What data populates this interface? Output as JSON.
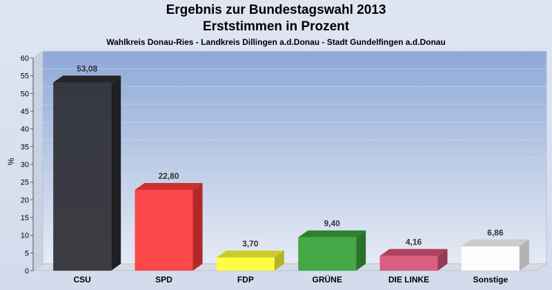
{
  "chart_data": {
    "type": "bar",
    "title": "Ergebnis zur Bundestagswahl 2013",
    "subtitle_line": "Erststimmen in Prozent",
    "subtitle": "Wahlkreis Donau-Ries - Landkreis Dillingen a.d.Donau - Stadt Gundelfingen a.d.Donau",
    "ylabel": "%",
    "xlabel": "",
    "ylim": [
      0,
      60
    ],
    "yticks": [
      "0",
      "5",
      "10",
      "15",
      "20",
      "25",
      "30",
      "35",
      "40",
      "45",
      "50",
      "55",
      "60"
    ],
    "categories": [
      "CSU",
      "SPD",
      "FDP",
      "GRÜNE",
      "DIE LINKE",
      "Sonstige"
    ],
    "values": [
      53.08,
      22.8,
      3.7,
      9.4,
      4.16,
      6.86
    ],
    "value_labels": [
      "53,08",
      "22,80",
      "3,70",
      "9,40",
      "4,16",
      "6,86"
    ],
    "colors": [
      "#2e2e33",
      "#ff3b3b",
      "#ffff33",
      "#3aa33a",
      "#d95378",
      "#ffffff"
    ],
    "grid": true
  }
}
